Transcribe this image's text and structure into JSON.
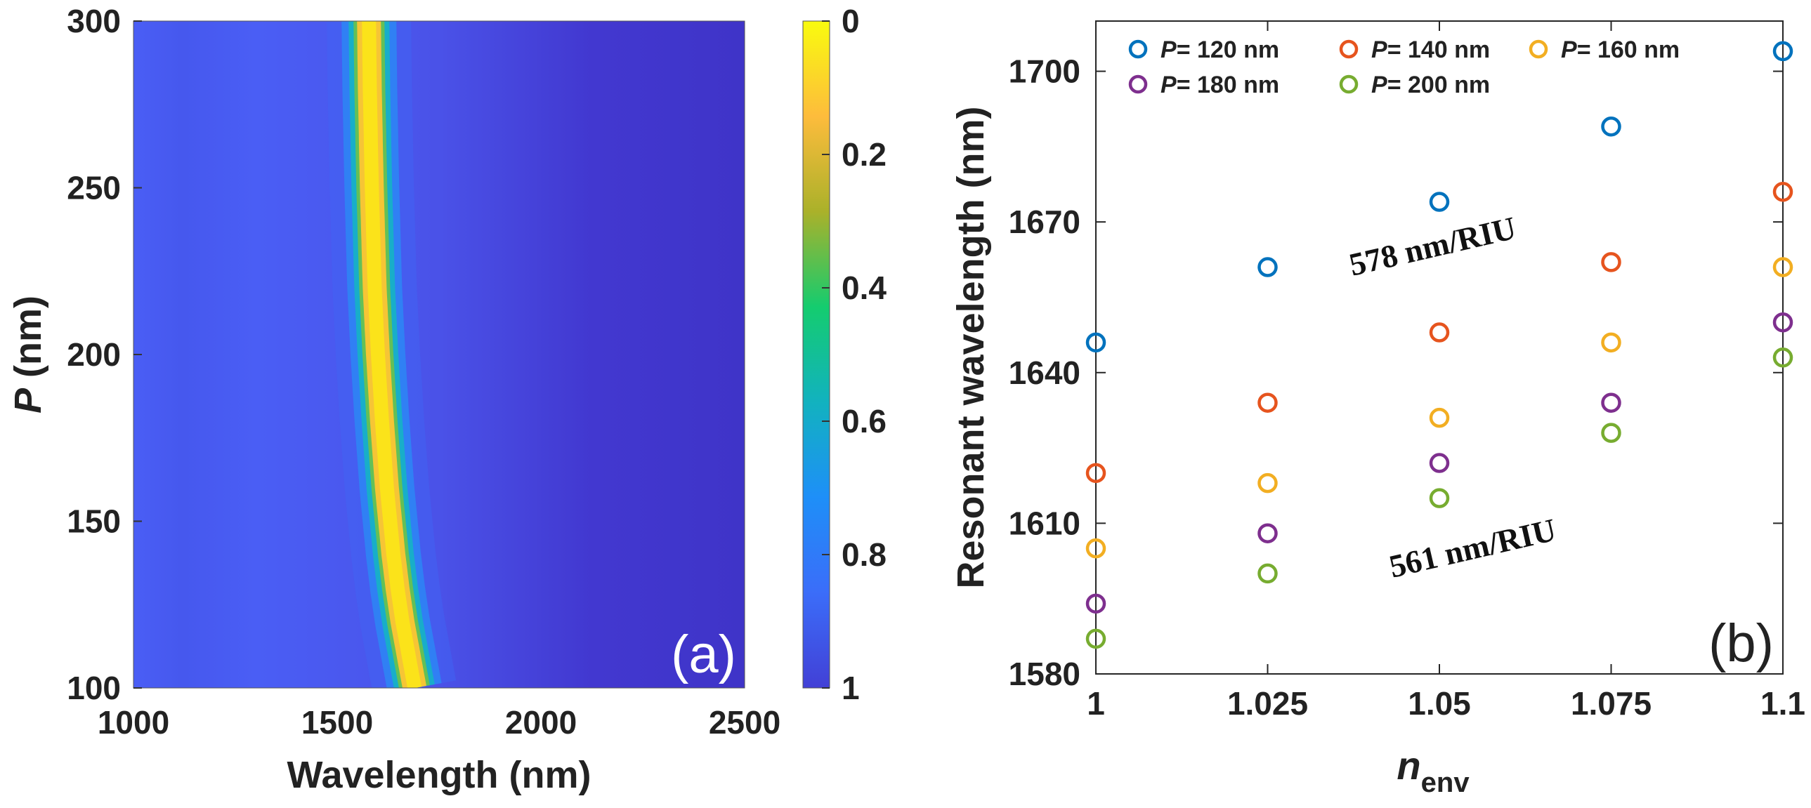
{
  "chart_data": [
    {
      "type": "heatmap",
      "panel_label": "(a)",
      "xlabel": "Wavelength (nm)",
      "ylabel_italic": "P",
      "ylabel_rest": " (nm)",
      "xlim": [
        1000,
        2500
      ],
      "ylim": [
        100,
        300
      ],
      "xticks": [
        "1000",
        "1500",
        "2000",
        "2500"
      ],
      "yticks": [
        "100",
        "150",
        "200",
        "250",
        "300"
      ],
      "colorbar": {
        "range": [
          0,
          1
        ],
        "ticks": [
          "0",
          "0.2",
          "0.4",
          "0.6",
          "0.8",
          "1"
        ],
        "colors": [
          "#f9fb0e",
          "#fdbc3c",
          "#aab12a",
          "#14cc6f",
          "#12b2bf",
          "#1e8ff8",
          "#3b6df9",
          "#4240d6"
        ]
      },
      "resonance_ridge": {
        "P": [
          100,
          110,
          120,
          130,
          140,
          150,
          160,
          180,
          200,
          220,
          250,
          280,
          300
        ],
        "wavelength": [
          1690,
          1675,
          1660,
          1648,
          1638,
          1630,
          1622,
          1610,
          1600,
          1592,
          1585,
          1580,
          1578
        ]
      }
    },
    {
      "type": "scatter",
      "panel_label": "(b)",
      "ylabel": "Resonant wavelength (nm)",
      "xlabel_italic": "n",
      "xlabel_sub": "env",
      "xlim": [
        1,
        1.1
      ],
      "ylim": [
        1580,
        1710
      ],
      "xticks": [
        "1",
        "1.025",
        "1.05",
        "1.075",
        "1.1"
      ],
      "yticks": [
        "1580",
        "1610",
        "1640",
        "1670",
        "1700"
      ],
      "x": [
        1,
        1.025,
        1.05,
        1.075,
        1.1
      ],
      "series": [
        {
          "name": "P= 120 nm",
          "legend_italic": "P",
          "legend_rest": "= 120 nm",
          "color": "#0072bd",
          "values": [
            1646,
            1661,
            1674,
            1689,
            1704
          ]
        },
        {
          "name": "P= 140 nm",
          "legend_italic": "P",
          "legend_rest": "= 140 nm",
          "color": "#e6541e",
          "values": [
            1620,
            1634,
            1648,
            1662,
            1676
          ]
        },
        {
          "name": "P= 160 nm",
          "legend_italic": "P",
          "legend_rest": "= 160 nm",
          "color": "#f2ae22",
          "values": [
            1605,
            1618,
            1631,
            1646,
            1661
          ]
        },
        {
          "name": "P= 180 nm",
          "legend_italic": "P",
          "legend_rest": "= 180 nm",
          "color": "#7e2f8e",
          "values": [
            1594,
            1608,
            1622,
            1634,
            1650
          ]
        },
        {
          "name": "P= 200 nm",
          "legend_italic": "P",
          "legend_rest": "= 200 nm",
          "color": "#77ac30",
          "values": [
            1587,
            1600,
            1615,
            1628,
            1643
          ]
        }
      ],
      "annotations": [
        "578 nm/RIU",
        "561 nm/RIU"
      ]
    }
  ]
}
